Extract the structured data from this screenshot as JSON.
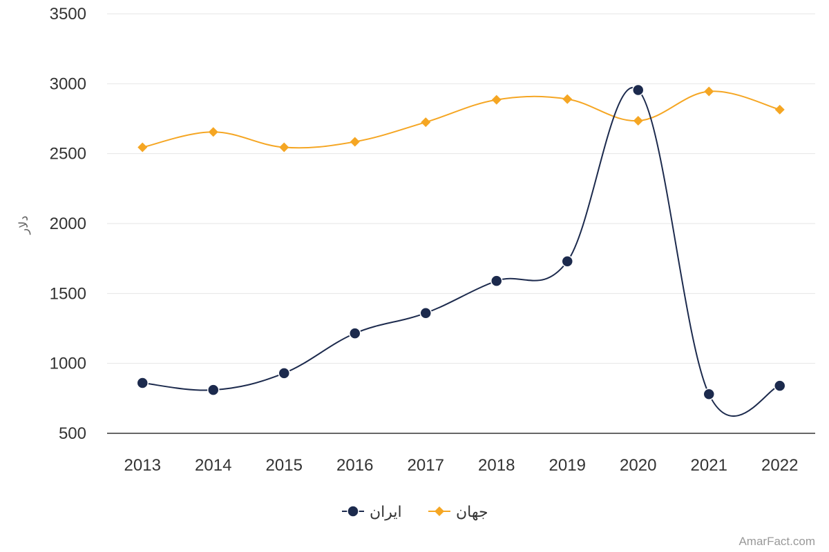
{
  "chart_data": {
    "type": "line",
    "categories": [
      "2013",
      "2014",
      "2015",
      "2016",
      "2017",
      "2018",
      "2019",
      "2020",
      "2021",
      "2022"
    ],
    "series": [
      {
        "name": "ایران",
        "color": "#1c2a4d",
        "marker": "circle",
        "values": [
          860,
          810,
          930,
          1215,
          1360,
          1590,
          1730,
          2955,
          780,
          840
        ]
      },
      {
        "name": "جهان",
        "color": "#f5a623",
        "marker": "diamond",
        "values": [
          2545,
          2655,
          2545,
          2585,
          2725,
          2885,
          2890,
          2735,
          2945,
          2815
        ]
      }
    ],
    "yticks": [
      500,
      1000,
      1500,
      2000,
      2500,
      3000,
      3500
    ],
    "ylim": [
      500,
      3500
    ],
    "ylabel": "دلار",
    "grid": true,
    "legend_position": "bottom-center"
  },
  "credit": "AmarFact.com"
}
